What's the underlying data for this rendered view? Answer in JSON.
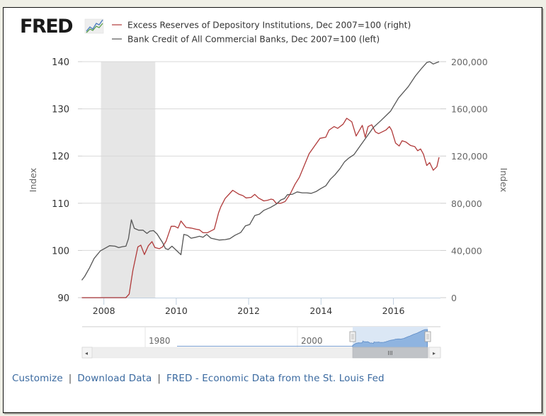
{
  "brand": {
    "logo_text": "FRED",
    "logo_icon": "trend-chart-icon"
  },
  "colors": {
    "series_red": "#b03a3a",
    "series_gray": "#555555",
    "recession": "#e6e6e6",
    "grid": "#d8d8d8",
    "link": "#3b6aa0",
    "navigator_fill": "#8fb4e0",
    "navigator_mask": "#dbe7f5"
  },
  "footer": {
    "customize": "Customize",
    "download": "Download Data",
    "fred_link": "FRED - Economic Data from the St. Louis Fed",
    "separator": "|"
  },
  "navigator": {
    "labels": [
      "1980",
      "2000"
    ],
    "scroll_grip": "III",
    "left_arrow": "◂",
    "right_arrow": "▸",
    "range_start": 2007.4,
    "range_end": 2017.3
  },
  "chart_data": {
    "type": "line",
    "title": "",
    "xlabel": "",
    "ylabel": "Index",
    "y2label": "Index",
    "xlim": [
      2007.4,
      2017.3
    ],
    "ylim": [
      90,
      140
    ],
    "y2lim": [
      0,
      200000
    ],
    "xticks": [
      2008,
      2010,
      2012,
      2014,
      2016
    ],
    "xtick_labels": [
      "2008",
      "2010",
      "2012",
      "2014",
      "2016"
    ],
    "yticks": [
      90,
      100,
      110,
      120,
      130,
      140
    ],
    "ytick_labels": [
      "90",
      "100",
      "110",
      "120",
      "130",
      "140"
    ],
    "y2ticks": [
      0,
      40000,
      80000,
      120000,
      160000,
      200000
    ],
    "y2tick_labels": [
      "0",
      "40,000",
      "80,000",
      "120,000",
      "160,000",
      "200,000"
    ],
    "grid": true,
    "legend_position": "top",
    "recessions": [
      [
        2007.92,
        2009.42
      ]
    ],
    "series": [
      {
        "name": "Excess Reserves of Depository Institutions, Dec 2007=100 (right)",
        "axis": "right",
        "color": "#b03a3a",
        "x": [
          2007.39,
          2008.61,
          2008.7,
          2008.8,
          2008.94,
          2009.02,
          2009.12,
          2009.23,
          2009.33,
          2009.41,
          2009.53,
          2009.62,
          2009.72,
          2009.86,
          2009.96,
          2010.05,
          2010.13,
          2010.27,
          2010.41,
          2010.54,
          2010.64,
          2010.74,
          2010.86,
          2011.05,
          2011.17,
          2011.23,
          2011.35,
          2011.56,
          2011.74,
          2011.84,
          2011.93,
          2012.07,
          2012.17,
          2012.27,
          2012.42,
          2012.52,
          2012.62,
          2012.68,
          2012.76,
          2012.89,
          2013.01,
          2013.15,
          2013.28,
          2013.4,
          2013.67,
          2013.97,
          2014.13,
          2014.22,
          2014.36,
          2014.46,
          2014.61,
          2014.71,
          2014.85,
          2014.97,
          2015.14,
          2015.22,
          2015.3,
          2015.4,
          2015.5,
          2015.59,
          2015.69,
          2015.79,
          2015.89,
          2015.95,
          2016.06,
          2016.16,
          2016.24,
          2016.34,
          2016.47,
          2016.59,
          2016.67,
          2016.75,
          2016.83,
          2016.92,
          2017.0,
          2017.1,
          2017.2,
          2017.26
        ],
        "y": [
          0,
          0,
          3000,
          23000,
          43000,
          44500,
          36500,
          44000,
          47500,
          42500,
          41500,
          43000,
          48000,
          60500,
          60500,
          59000,
          65000,
          59500,
          59000,
          58000,
          57500,
          55000,
          55000,
          58000,
          72000,
          77000,
          84000,
          91000,
          87500,
          86500,
          84500,
          85000,
          87500,
          84500,
          82000,
          82500,
          83500,
          83000,
          80000,
          80000,
          81500,
          88000,
          96000,
          102000,
          122000,
          135000,
          136000,
          142000,
          145000,
          143500,
          147000,
          152000,
          149000,
          137000,
          146000,
          136000,
          145000,
          146500,
          140500,
          139000,
          140500,
          142000,
          145000,
          142000,
          131000,
          128500,
          133000,
          132000,
          129000,
          128000,
          124500,
          126000,
          121500,
          112000,
          114500,
          108000,
          111000,
          119000
        ]
      },
      {
        "name": "Bank Credit of All Commercial Banks, Dec 2007=100 (left)",
        "axis": "left",
        "color": "#555555",
        "x": [
          2007.39,
          2007.47,
          2007.61,
          2007.73,
          2007.9,
          2008.02,
          2008.16,
          2008.31,
          2008.41,
          2008.51,
          2008.61,
          2008.68,
          2008.76,
          2008.84,
          2008.96,
          2009.08,
          2009.19,
          2009.27,
          2009.37,
          2009.47,
          2009.56,
          2009.62,
          2009.7,
          2009.78,
          2009.88,
          2009.98,
          2010.13,
          2010.21,
          2010.31,
          2010.41,
          2010.54,
          2010.64,
          2010.74,
          2010.84,
          2010.96,
          2011.19,
          2011.35,
          2011.48,
          2011.62,
          2011.78,
          2011.91,
          2012.03,
          2012.17,
          2012.3,
          2012.42,
          2012.6,
          2012.76,
          2012.89,
          2012.99,
          2013.07,
          2013.21,
          2013.34,
          2013.48,
          2013.6,
          2013.73,
          2013.87,
          2013.99,
          2014.13,
          2014.26,
          2014.38,
          2014.52,
          2014.65,
          2014.77,
          2014.91,
          2015.16,
          2015.44,
          2015.65,
          2015.92,
          2016.14,
          2016.41,
          2016.61,
          2016.77,
          2016.92,
          2017.0,
          2017.1,
          2017.26
        ],
        "y": [
          93.7,
          94.5,
          96.4,
          98.3,
          99.9,
          100.4,
          101.0,
          100.9,
          100.6,
          100.8,
          100.9,
          102.5,
          106.5,
          104.7,
          104.3,
          104.3,
          103.6,
          104.1,
          104.2,
          103.5,
          102.4,
          101.7,
          100.4,
          100.2,
          100.9,
          100.2,
          99.1,
          103.4,
          103.2,
          102.6,
          102.8,
          103.0,
          102.8,
          103.4,
          102.6,
          102.2,
          102.3,
          102.5,
          103.2,
          103.8,
          105.2,
          105.5,
          107.4,
          107.7,
          108.5,
          109.1,
          109.8,
          110.7,
          111.0,
          111.8,
          111.9,
          112.4,
          112.2,
          112.2,
          112.1,
          112.5,
          113.1,
          113.7,
          115.1,
          116.0,
          117.3,
          118.8,
          119.6,
          120.3,
          123.0,
          126.0,
          127.5,
          129.5,
          132.3,
          134.7,
          137.0,
          138.5,
          139.8,
          140.0,
          139.5,
          140.0
        ]
      }
    ]
  }
}
